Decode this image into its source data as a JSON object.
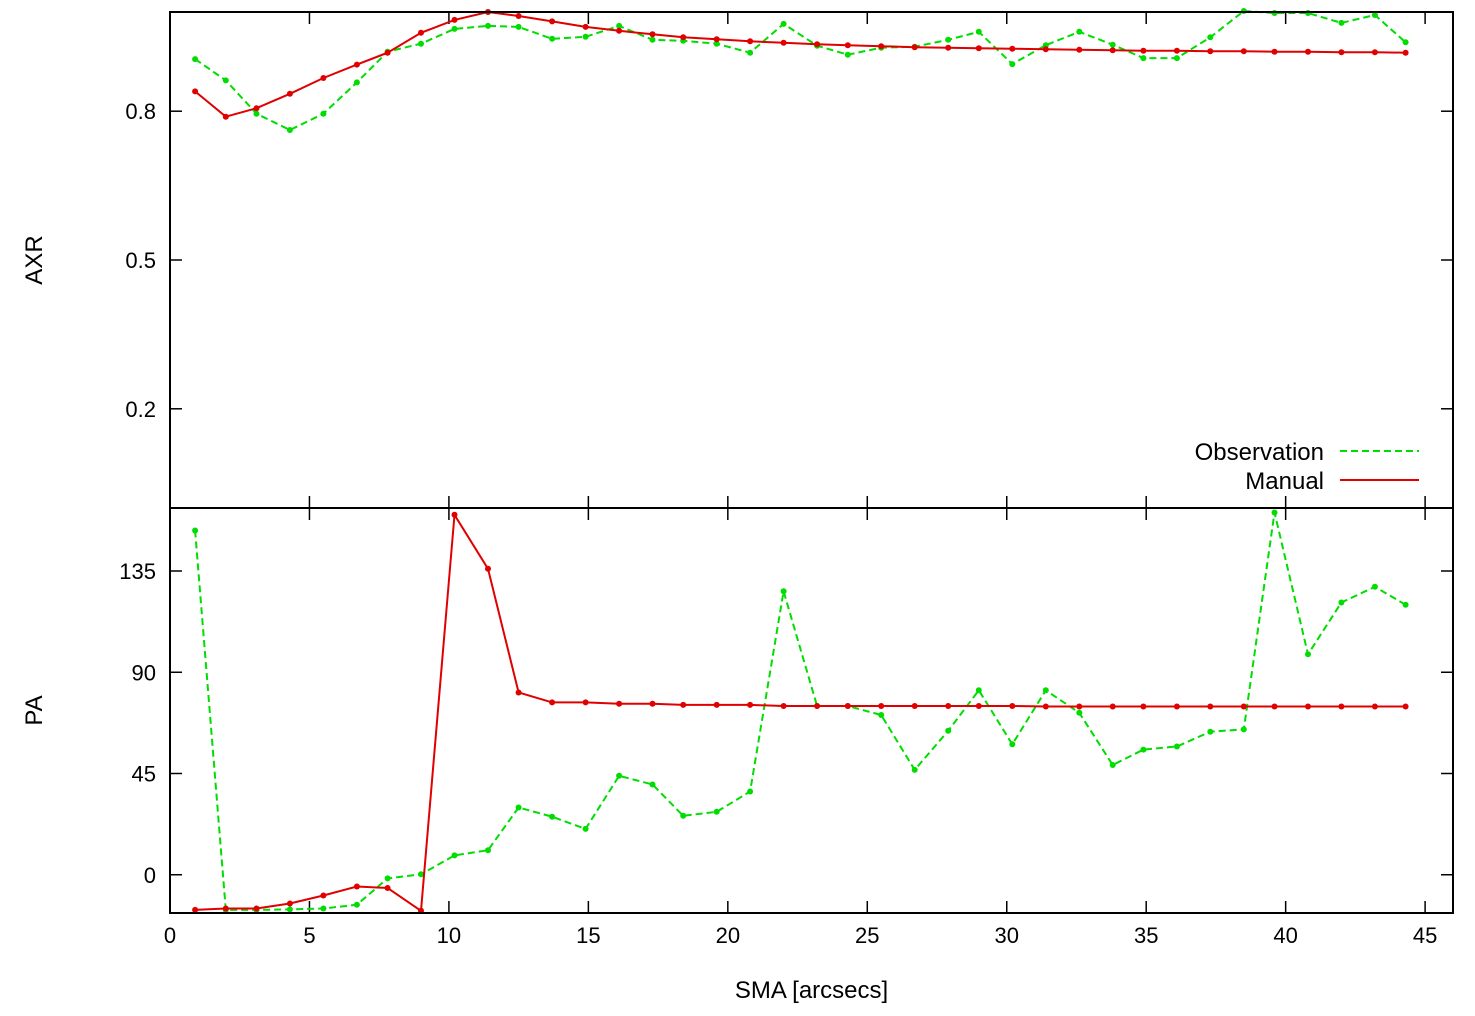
{
  "chart_data": [
    {
      "type": "line",
      "panel": "top",
      "ylabel": "AXR",
      "xlabel": "",
      "xlim": [
        0,
        46
      ],
      "ylim": [
        0,
        1.0
      ],
      "yticks": [
        {
          "value": 0.2,
          "label": "0.2"
        },
        {
          "value": 0.5,
          "label": "0.5"
        },
        {
          "value": 0.8,
          "label": "0.8"
        }
      ],
      "legend": {
        "placement": "bottom-right",
        "entries": [
          {
            "name": "Observation",
            "series": "observation"
          },
          {
            "name": "Manual",
            "series": "manual"
          }
        ]
      },
      "series": [
        {
          "key": "observation",
          "name": "Observation",
          "color": "#00dd00",
          "style": "dashed",
          "points": [
            [
              0.9,
              0.905
            ],
            [
              2.0,
              0.862
            ],
            [
              3.1,
              0.795
            ],
            [
              4.3,
              0.762
            ],
            [
              5.5,
              0.795
            ],
            [
              6.7,
              0.858
            ],
            [
              7.8,
              0.92
            ],
            [
              9.0,
              0.936
            ],
            [
              10.2,
              0.966
            ],
            [
              11.4,
              0.972
            ],
            [
              12.5,
              0.97
            ],
            [
              13.7,
              0.946
            ],
            [
              14.9,
              0.95
            ],
            [
              16.1,
              0.972
            ],
            [
              17.3,
              0.944
            ],
            [
              18.4,
              0.942
            ],
            [
              19.6,
              0.936
            ],
            [
              20.8,
              0.918
            ],
            [
              22.0,
              0.976
            ],
            [
              23.2,
              0.932
            ],
            [
              24.3,
              0.914
            ],
            [
              25.5,
              0.928
            ],
            [
              26.7,
              0.93
            ],
            [
              27.9,
              0.944
            ],
            [
              29.0,
              0.96
            ],
            [
              30.2,
              0.895
            ],
            [
              31.4,
              0.933
            ],
            [
              32.6,
              0.96
            ],
            [
              33.8,
              0.934
            ],
            [
              34.9,
              0.907
            ],
            [
              36.1,
              0.907
            ],
            [
              37.3,
              0.949
            ],
            [
              38.5,
              1.002
            ],
            [
              39.6,
              0.998
            ],
            [
              40.8,
              0.998
            ],
            [
              42.0,
              0.978
            ],
            [
              43.2,
              0.994
            ],
            [
              44.3,
              0.939
            ]
          ]
        },
        {
          "key": "manual",
          "name": "Manual",
          "color": "#e00000",
          "style": "solid",
          "points": [
            [
              0.9,
              0.84
            ],
            [
              2.0,
              0.789
            ],
            [
              3.1,
              0.806
            ],
            [
              4.3,
              0.835
            ],
            [
              5.5,
              0.867
            ],
            [
              6.7,
              0.894
            ],
            [
              7.8,
              0.918
            ],
            [
              9.0,
              0.958
            ],
            [
              10.2,
              0.984
            ],
            [
              11.4,
              1.0
            ],
            [
              12.5,
              0.992
            ],
            [
              13.7,
              0.981
            ],
            [
              14.9,
              0.97
            ],
            [
              16.1,
              0.962
            ],
            [
              17.3,
              0.955
            ],
            [
              18.4,
              0.949
            ],
            [
              19.6,
              0.945
            ],
            [
              20.8,
              0.941
            ],
            [
              22.0,
              0.938
            ],
            [
              23.2,
              0.935
            ],
            [
              24.3,
              0.933
            ],
            [
              25.5,
              0.931
            ],
            [
              26.7,
              0.929
            ],
            [
              27.9,
              0.928
            ],
            [
              29.0,
              0.927
            ],
            [
              30.2,
              0.926
            ],
            [
              31.4,
              0.925
            ],
            [
              32.6,
              0.924
            ],
            [
              33.8,
              0.923
            ],
            [
              34.9,
              0.922
            ],
            [
              36.1,
              0.922
            ],
            [
              37.3,
              0.921
            ],
            [
              38.5,
              0.921
            ],
            [
              39.6,
              0.92
            ],
            [
              40.8,
              0.92
            ],
            [
              42.0,
              0.919
            ],
            [
              43.2,
              0.919
            ],
            [
              44.3,
              0.918
            ]
          ]
        }
      ]
    },
    {
      "type": "line",
      "panel": "bottom",
      "ylabel": "PA",
      "xlabel": "SMA [arcsecs]",
      "xlim": [
        0,
        46
      ],
      "ylim": [
        -17,
        163
      ],
      "xticks": [
        {
          "value": 0,
          "label": "0"
        },
        {
          "value": 5,
          "label": "5"
        },
        {
          "value": 10,
          "label": "10"
        },
        {
          "value": 15,
          "label": "15"
        },
        {
          "value": 20,
          "label": "20"
        },
        {
          "value": 25,
          "label": "25"
        },
        {
          "value": 30,
          "label": "30"
        },
        {
          "value": 35,
          "label": "35"
        },
        {
          "value": 40,
          "label": "40"
        },
        {
          "value": 45,
          "label": "45"
        }
      ],
      "yticks": [
        {
          "value": 0,
          "label": "0"
        },
        {
          "value": 45,
          "label": "45"
        },
        {
          "value": 90,
          "label": "90"
        },
        {
          "value": 135,
          "label": "135"
        }
      ],
      "series": [
        {
          "key": "observation",
          "name": "Observation",
          "color": "#00dd00",
          "style": "dashed",
          "points": [
            [
              0.9,
              153
            ],
            [
              2.0,
              -15.6
            ],
            [
              3.1,
              -15.6
            ],
            [
              4.3,
              -15.4
            ],
            [
              5.5,
              -15.0
            ],
            [
              6.7,
              -13.3
            ],
            [
              7.8,
              -1.6
            ],
            [
              9.0,
              0.2
            ],
            [
              10.2,
              8.6
            ],
            [
              11.4,
              10.9
            ],
            [
              12.5,
              29.9
            ],
            [
              13.7,
              25.8
            ],
            [
              14.9,
              20.4
            ],
            [
              16.1,
              44.0
            ],
            [
              17.3,
              40.1
            ],
            [
              18.4,
              26.2
            ],
            [
              19.6,
              28.0
            ],
            [
              20.8,
              37.0
            ],
            [
              22.0,
              126
            ],
            [
              23.2,
              75.0
            ],
            [
              24.3,
              75.0
            ],
            [
              25.5,
              71.0
            ],
            [
              26.7,
              46.6
            ],
            [
              27.9,
              64.0
            ],
            [
              29.0,
              82.0
            ],
            [
              30.2,
              58.0
            ],
            [
              31.4,
              82.0
            ],
            [
              32.6,
              72.0
            ],
            [
              33.8,
              48.8
            ],
            [
              34.9,
              55.6
            ],
            [
              36.1,
              57.0
            ],
            [
              37.3,
              63.6
            ],
            [
              38.5,
              64.6
            ],
            [
              39.6,
              161
            ],
            [
              40.8,
              98.0
            ],
            [
              42.0,
              121
            ],
            [
              43.2,
              128
            ],
            [
              44.3,
              120
            ]
          ]
        },
        {
          "key": "manual",
          "name": "Manual",
          "color": "#e00000",
          "style": "solid",
          "points": [
            [
              0.9,
              -15.6
            ],
            [
              2.0,
              -15.0
            ],
            [
              3.1,
              -15.0
            ],
            [
              4.3,
              -12.8
            ],
            [
              5.5,
              -9.2
            ],
            [
              6.7,
              -5.2
            ],
            [
              7.8,
              -5.9
            ],
            [
              9.0,
              -16.0
            ],
            [
              10.2,
              160
            ],
            [
              11.4,
              136
            ],
            [
              12.5,
              81.0
            ],
            [
              13.7,
              76.6
            ],
            [
              14.9,
              76.6
            ],
            [
              16.1,
              76.0
            ],
            [
              17.3,
              76.0
            ],
            [
              18.4,
              75.5
            ],
            [
              19.6,
              75.5
            ],
            [
              20.8,
              75.5
            ],
            [
              22.0,
              75.0
            ],
            [
              23.2,
              75.0
            ],
            [
              24.3,
              75.0
            ],
            [
              25.5,
              75.0
            ],
            [
              26.7,
              75.0
            ],
            [
              27.9,
              75.0
            ],
            [
              29.0,
              75.0
            ],
            [
              30.2,
              75.0
            ],
            [
              31.4,
              74.8
            ],
            [
              32.6,
              74.8
            ],
            [
              33.8,
              74.8
            ],
            [
              34.9,
              74.8
            ],
            [
              36.1,
              74.8
            ],
            [
              37.3,
              74.8
            ],
            [
              38.5,
              74.8
            ],
            [
              39.6,
              74.8
            ],
            [
              40.8,
              74.8
            ],
            [
              42.0,
              74.8
            ],
            [
              43.2,
              74.8
            ],
            [
              44.3,
              74.8
            ]
          ]
        }
      ]
    }
  ]
}
